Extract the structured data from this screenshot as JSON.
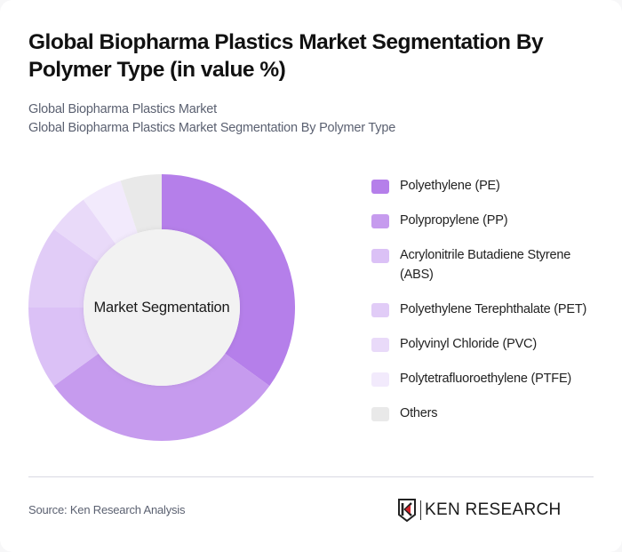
{
  "header": {
    "title": "Global Biopharma Plastics Market Segmentation By Polymer Type (in value %)",
    "subtitle_line1": "Global Biopharma Plastics Market",
    "subtitle_line2": "Global Biopharma Plastics Market Segmentation By Polymer Type"
  },
  "chart": {
    "center_label": "Market Segmentation"
  },
  "legend": {
    "items": [
      {
        "label": "Polyethylene (PE)",
        "color": "#b57fea"
      },
      {
        "label": "Polypropylene (PP)",
        "color": "#c69bee"
      },
      {
        "label": "Acrylonitrile Butadiene Styrene (ABS)",
        "color": "#dbc1f6"
      },
      {
        "label": "Polyethylene Terephthalate (PET)",
        "color": "#e1ccf7"
      },
      {
        "label": "Polyvinyl Chloride (PVC)",
        "color": "#e9daf9"
      },
      {
        "label": "Polytetrafluoroethylene (PTFE)",
        "color": "#f2eafc"
      },
      {
        "label": "Others",
        "color": "#e9e9e9"
      }
    ]
  },
  "footer": {
    "source": "Source: Ken Research Analysis",
    "brand": "KEN RESEARCH",
    "brand_logo_icon": "ken-research-k-shield"
  },
  "chart_data": {
    "type": "pie",
    "title": "Global Biopharma Plastics Market Segmentation By Polymer Type (in value %)",
    "subtitle": "Global Biopharma Plastics Market Segmentation By Polymer Type",
    "center_label": "Market Segmentation",
    "donut": true,
    "categories": [
      "Polyethylene (PE)",
      "Polypropylene (PP)",
      "Acrylonitrile Butadiene Styrene (ABS)",
      "Polyethylene Terephthalate (PET)",
      "Polyvinyl Chloride (PVC)",
      "Polytetrafluoroethylene (PTFE)",
      "Others"
    ],
    "values": [
      35,
      30,
      10,
      10,
      5,
      5,
      5
    ],
    "colors": [
      "#b57fea",
      "#c69bee",
      "#dbc1f6",
      "#e1ccf7",
      "#e9daf9",
      "#f2eafc",
      "#e9e9e9"
    ],
    "unit": "%",
    "legend_position": "right",
    "start_angle": "top, clockwise"
  }
}
